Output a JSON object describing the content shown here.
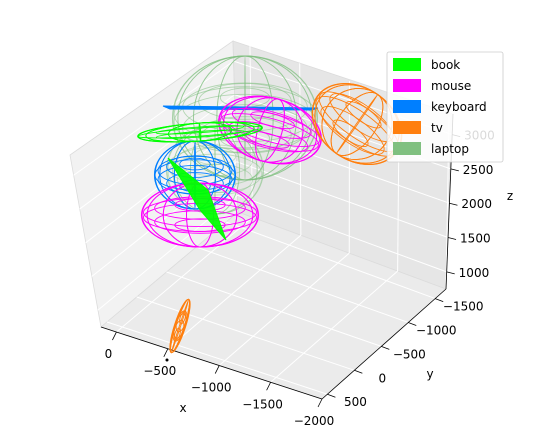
{
  "chart_data": {
    "type": "scatter",
    "projection": "3d",
    "title": "",
    "xlabel": "x",
    "ylabel": "y",
    "zlabel": "z",
    "xlim": [
      150,
      -2000
    ],
    "ylim": [
      -1700,
      600
    ],
    "zlim": [
      750,
      3300
    ],
    "x_ticks": [
      0,
      -500,
      -1000,
      -1500,
      -2000
    ],
    "y_ticks": [
      -1500,
      -1000,
      -500,
      0,
      500
    ],
    "z_ticks": [
      1000,
      1500,
      2000,
      2500,
      3000
    ],
    "x_tick_labels": [
      "0",
      "−500",
      "−1000",
      "−1500",
      "−2000"
    ],
    "y_tick_labels": [
      "−1500",
      "−1000",
      "−500",
      "0",
      "500"
    ],
    "z_tick_labels": [
      "1000",
      "1500",
      "2000",
      "2500",
      "3000"
    ],
    "grid": true,
    "legend_position": "top-right",
    "series": [
      {
        "name": "book",
        "color": "#00ff00"
      },
      {
        "name": "mouse",
        "color": "#ff00ff"
      },
      {
        "name": "keyboard",
        "color": "#007fff"
      },
      {
        "name": "tv",
        "color": "#ff7f0e"
      },
      {
        "name": "laptop",
        "color": "#80c080"
      }
    ]
  }
}
